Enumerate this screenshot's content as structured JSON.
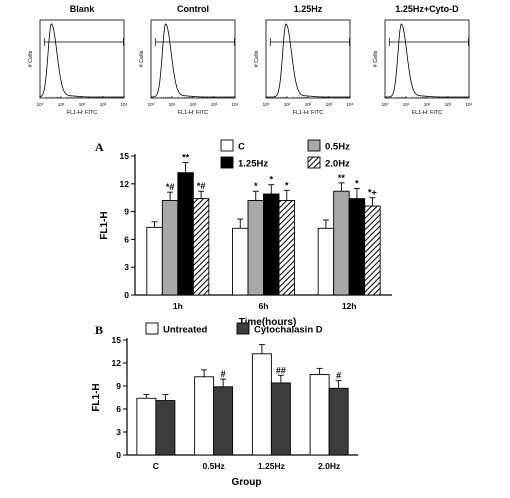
{
  "chart_data": [
    {
      "type": "line",
      "title": "Blank",
      "xlabel": "FL1-H: FITC",
      "ylabel": "# Cells",
      "x_scale": "log",
      "xlim": [
        1,
        10000
      ],
      "x_tick_labels": [
        "10⁰",
        "10¹",
        "10²",
        "10³",
        "10⁴"
      ],
      "peak_x": 3.5,
      "gate_marker": [
        1.6,
        10000
      ]
    },
    {
      "type": "line",
      "title": "Control",
      "xlabel": "FL1-H: FITC",
      "ylabel": "# Cells",
      "x_scale": "log",
      "xlim": [
        1,
        10000
      ],
      "x_tick_labels": [
        "10⁰",
        "10¹",
        "10²",
        "10³",
        "10⁴"
      ],
      "peak_x": 5,
      "gate_marker": [
        1.6,
        10000
      ]
    },
    {
      "type": "line",
      "title": "1.25Hz",
      "xlabel": "FL1-H: FITC",
      "ylabel": "# Cells",
      "x_scale": "log",
      "xlim": [
        1,
        10000
      ],
      "x_tick_labels": [
        "10⁰",
        "10¹",
        "10²",
        "10³",
        "10⁴"
      ],
      "peak_x": 9,
      "gate_marker": [
        1.6,
        10000
      ]
    },
    {
      "type": "line",
      "title": "1.25Hz+Cyto-D",
      "xlabel": "FL1-H: FITC",
      "ylabel": "# Cells",
      "x_scale": "log",
      "xlim": [
        1,
        10000
      ],
      "x_tick_labels": [
        "10⁰",
        "10¹",
        "10²",
        "10³",
        "10⁴"
      ],
      "peak_x": 6,
      "gate_marker": [
        1.6,
        10000
      ]
    },
    {
      "type": "bar",
      "panel_label": "A",
      "xlabel": "Time(hours)",
      "ylabel": "FL1-H",
      "ylim": [
        0,
        15
      ],
      "yticks": [
        0,
        3,
        6,
        9,
        12,
        15
      ],
      "categories": [
        "1h",
        "6h",
        "12h"
      ],
      "legend_placement": "top",
      "series": [
        {
          "name": "C",
          "values": [
            7.3,
            7.2,
            7.2
          ],
          "errors": [
            0.6,
            1.0,
            0.9
          ],
          "labels": [
            "",
            "",
            ""
          ],
          "fill": "#ffffff",
          "pattern": "none"
        },
        {
          "name": "0.5Hz",
          "values": [
            10.2,
            10.2,
            11.2
          ],
          "errors": [
            0.9,
            1.0,
            0.9
          ],
          "labels": [
            "*#",
            "*",
            "**"
          ],
          "fill": "#a8a8a8",
          "pattern": "none"
        },
        {
          "name": "1.25Hz",
          "values": [
            13.2,
            10.9,
            10.4
          ],
          "errors": [
            1.1,
            1.0,
            1.1
          ],
          "labels": [
            "**",
            "*",
            "*"
          ],
          "fill": "#000000",
          "pattern": "none"
        },
        {
          "name": "2.0Hz",
          "values": [
            10.4,
            10.2,
            9.6
          ],
          "errors": [
            0.8,
            1.1,
            0.9
          ],
          "labels": [
            "*#",
            "*",
            "*+"
          ],
          "fill": "#ffffff",
          "pattern": "diagonal"
        }
      ]
    },
    {
      "type": "bar",
      "panel_label": "B",
      "xlabel": "Group",
      "ylabel": "FL1-H",
      "ylim": [
        0,
        15
      ],
      "yticks": [
        0,
        3,
        6,
        9,
        12,
        15
      ],
      "categories": [
        "C",
        "0.5Hz",
        "1.25Hz",
        "2.0Hz"
      ],
      "legend_placement": "top",
      "series": [
        {
          "name": "Untreated",
          "values": [
            7.4,
            10.2,
            13.2,
            10.5
          ],
          "errors": [
            0.5,
            0.9,
            1.2,
            0.8
          ],
          "labels": [
            "",
            "",
            "",
            ""
          ],
          "fill": "#ffffff",
          "pattern": "none"
        },
        {
          "name": "Cytochalasin D",
          "values": [
            7.1,
            8.9,
            9.4,
            8.7
          ],
          "errors": [
            0.8,
            1.0,
            1.0,
            1.0
          ],
          "labels": [
            "",
            "#",
            "##",
            "#"
          ],
          "fill": "#3c3c3c",
          "pattern": "none"
        }
      ]
    }
  ]
}
